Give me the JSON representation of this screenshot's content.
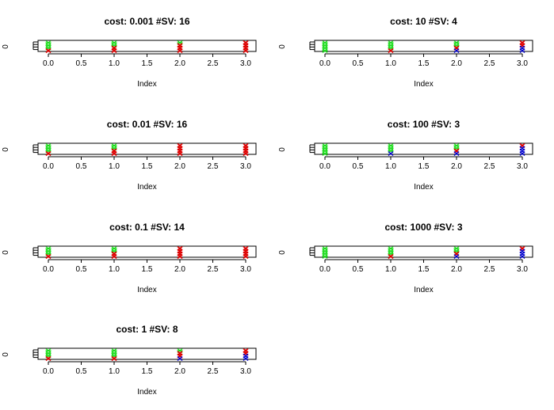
{
  "colors": {
    "green": "#22dd22",
    "red": "#dd0000",
    "blue": "#0000cc",
    "axis": "#000000"
  },
  "chart_data": [
    {
      "type": "scatter",
      "title": "cost:  0.001 #SV:  16",
      "xlabel": "Index",
      "ytick": "0",
      "xlim": [
        0,
        3
      ],
      "xticks": [
        "0.0",
        "0.5",
        "1.0",
        "1.5",
        "2.0",
        "2.5",
        "3.0"
      ],
      "points": [
        {
          "x": 0,
          "colors": [
            "green",
            "green",
            "green",
            "red"
          ]
        },
        {
          "x": 1,
          "colors": [
            "green",
            "green",
            "red",
            "red"
          ]
        },
        {
          "x": 2,
          "colors": [
            "green",
            "red",
            "red",
            "red"
          ]
        },
        {
          "x": 3,
          "colors": [
            "red",
            "red",
            "red",
            "red"
          ]
        }
      ]
    },
    {
      "type": "scatter",
      "title": "cost:  10 #SV:  4",
      "xlabel": "Index",
      "ytick": "0",
      "xlim": [
        0,
        3
      ],
      "xticks": [
        "0.0",
        "0.5",
        "1.0",
        "1.5",
        "2.0",
        "2.5",
        "3.0"
      ],
      "points": [
        {
          "x": 0,
          "colors": [
            "green",
            "green",
            "green",
            "green"
          ]
        },
        {
          "x": 1,
          "colors": [
            "green",
            "green",
            "green",
            "red"
          ]
        },
        {
          "x": 2,
          "colors": [
            "green",
            "green",
            "red",
            "blue"
          ]
        },
        {
          "x": 3,
          "colors": [
            "red",
            "red",
            "blue",
            "blue"
          ]
        }
      ]
    },
    {
      "type": "scatter",
      "title": "cost:  0.01 #SV:  16",
      "xlabel": "Index",
      "ytick": "0",
      "xlim": [
        0,
        3
      ],
      "xticks": [
        "0.0",
        "0.5",
        "1.0",
        "1.5",
        "2.0",
        "2.5",
        "3.0"
      ],
      "points": [
        {
          "x": 0,
          "colors": [
            "green",
            "green",
            "green",
            "red"
          ]
        },
        {
          "x": 1,
          "colors": [
            "green",
            "green",
            "red",
            "red"
          ]
        },
        {
          "x": 2,
          "colors": [
            "red",
            "red",
            "red",
            "red"
          ]
        },
        {
          "x": 3,
          "colors": [
            "red",
            "red",
            "red",
            "red"
          ]
        }
      ]
    },
    {
      "type": "scatter",
      "title": "cost:  100 #SV:  3",
      "xlabel": "Index",
      "ytick": "0",
      "xlim": [
        0,
        3
      ],
      "xticks": [
        "0.0",
        "0.5",
        "1.0",
        "1.5",
        "2.0",
        "2.5",
        "3.0"
      ],
      "points": [
        {
          "x": 0,
          "colors": [
            "green",
            "green",
            "green",
            "green"
          ]
        },
        {
          "x": 1,
          "colors": [
            "green",
            "green",
            "green",
            "blue"
          ]
        },
        {
          "x": 2,
          "colors": [
            "green",
            "green",
            "red",
            "blue"
          ]
        },
        {
          "x": 3,
          "colors": [
            "red",
            "blue",
            "blue",
            "blue"
          ]
        }
      ]
    },
    {
      "type": "scatter",
      "title": "cost:  0.1 #SV:  14",
      "xlabel": "Index",
      "ytick": "0",
      "xlim": [
        0,
        3
      ],
      "xticks": [
        "0.0",
        "0.5",
        "1.0",
        "1.5",
        "2.0",
        "2.5",
        "3.0"
      ],
      "points": [
        {
          "x": 0,
          "colors": [
            "green",
            "green",
            "green",
            "red"
          ]
        },
        {
          "x": 1,
          "colors": [
            "green",
            "green",
            "red",
            "red"
          ]
        },
        {
          "x": 2,
          "colors": [
            "red",
            "red",
            "red",
            "red"
          ]
        },
        {
          "x": 3,
          "colors": [
            "red",
            "red",
            "red",
            "red"
          ]
        }
      ]
    },
    {
      "type": "scatter",
      "title": "cost:  1000 #SV:  3",
      "xlabel": "Index",
      "ytick": "0",
      "xlim": [
        0,
        3
      ],
      "xticks": [
        "0.0",
        "0.5",
        "1.0",
        "1.5",
        "2.0",
        "2.5",
        "3.0"
      ],
      "points": [
        {
          "x": 0,
          "colors": [
            "green",
            "green",
            "green",
            "green"
          ]
        },
        {
          "x": 1,
          "colors": [
            "green",
            "green",
            "green",
            "red"
          ]
        },
        {
          "x": 2,
          "colors": [
            "green",
            "green",
            "red",
            "blue"
          ]
        },
        {
          "x": 3,
          "colors": [
            "red",
            "blue",
            "blue",
            "blue"
          ]
        }
      ]
    },
    {
      "type": "scatter",
      "title": "cost:  1 #SV:  8",
      "xlabel": "Index",
      "ytick": "0",
      "xlim": [
        0,
        3
      ],
      "xticks": [
        "0.0",
        "0.5",
        "1.0",
        "1.5",
        "2.0",
        "2.5",
        "3.0"
      ],
      "points": [
        {
          "x": 0,
          "colors": [
            "green",
            "green",
            "green",
            "red"
          ]
        },
        {
          "x": 1,
          "colors": [
            "green",
            "green",
            "green",
            "red"
          ]
        },
        {
          "x": 2,
          "colors": [
            "green",
            "red",
            "red",
            "blue"
          ]
        },
        {
          "x": 3,
          "colors": [
            "red",
            "red",
            "blue",
            "blue"
          ]
        }
      ]
    }
  ]
}
